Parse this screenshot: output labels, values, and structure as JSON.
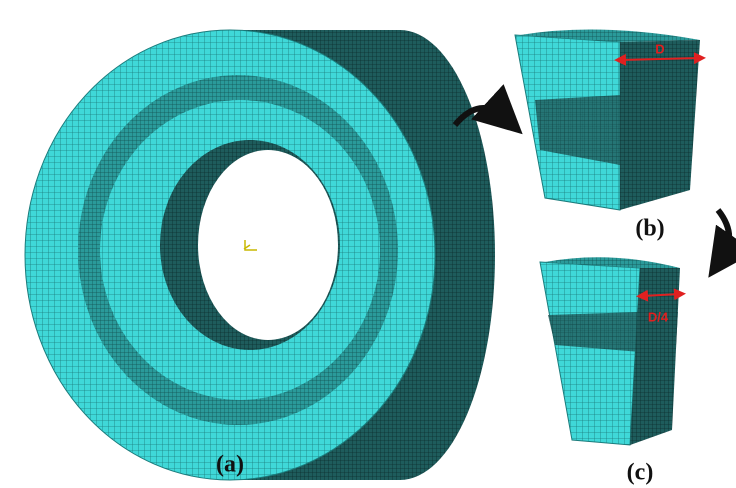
{
  "panels": [
    {
      "label": "(a)"
    },
    {
      "label": "(b)",
      "dimension": "D"
    },
    {
      "label": "(c)",
      "dimension": "D/4"
    }
  ]
}
